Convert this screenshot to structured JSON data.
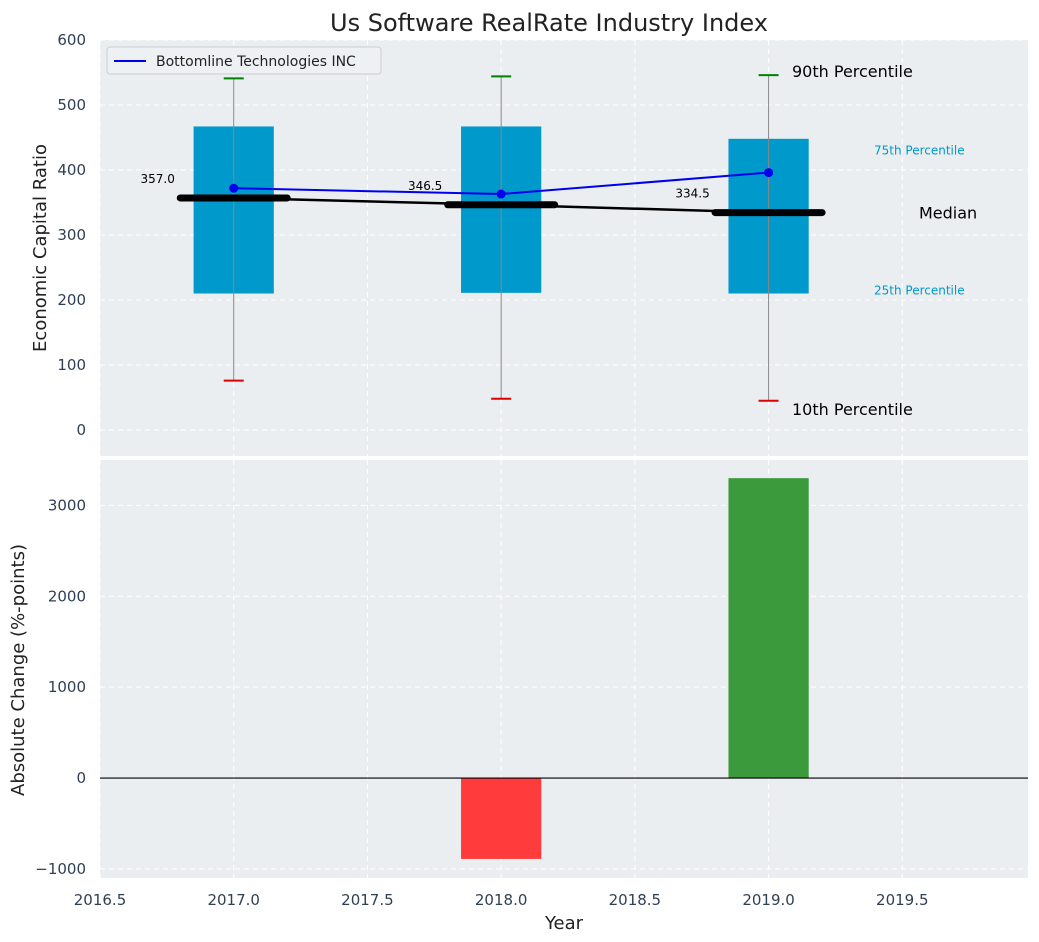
{
  "title": "Us Software RealRate Industry Index",
  "colors": {
    "panel_bg": "#eaeef0",
    "box": "#0099cc",
    "median": "#000000",
    "company": "#0000ee",
    "whisker": "#888888",
    "p90": "#008000",
    "p10": "#dd0000",
    "bar_positive": "#3a9a3c",
    "bar_negative": "#ff3b3b",
    "axis_text": "#2f3f55",
    "pct_label": "#0099cc"
  },
  "chart_data": [
    {
      "type": "box",
      "ylabel": "Economic Capital Ratio",
      "ylim": [
        -40,
        600
      ],
      "yticks": [
        "0",
        "100",
        "200",
        "300",
        "400",
        "500",
        "600"
      ],
      "xlim": [
        2016.5,
        2019.97
      ],
      "grid": true,
      "legend": {
        "placement": "top-left",
        "entries": [
          "Bottomline Technologies INC"
        ]
      },
      "x": [
        2017,
        2018,
        2019
      ],
      "p10": [
        76,
        48,
        45
      ],
      "p25": [
        210,
        211,
        210
      ],
      "median": [
        357.0,
        346.5,
        334.5
      ],
      "median_labels": [
        "357.0",
        "346.5",
        "334.5"
      ],
      "p75": [
        467,
        467,
        448
      ],
      "p90": [
        541,
        544,
        546
      ],
      "series": [
        {
          "name": "Bottomline Technologies INC",
          "x": [
            2017,
            2018,
            2019
          ],
          "values": [
            372,
            363,
            396
          ]
        }
      ],
      "annotations": {
        "p90": "90th Percentile",
        "p75": "75th Percentile",
        "median": "Median",
        "p25": "25th Percentile",
        "p10": "10th Percentile"
      }
    },
    {
      "type": "bar",
      "xlabel": "Year",
      "ylabel": "Absolute Change (%-points)",
      "ylim": [
        -1100,
        3500
      ],
      "yticks": [
        "−1000",
        "0",
        "1000",
        "2000",
        "3000"
      ],
      "xlim": [
        2016.5,
        2019.97
      ],
      "xticks": [
        "2016.5",
        "2017.0",
        "2017.5",
        "2018.0",
        "2018.5",
        "2019.0",
        "2019.5"
      ],
      "grid": true,
      "x": [
        2017,
        2018,
        2019
      ],
      "values": [
        0,
        -890,
        3300
      ]
    }
  ]
}
